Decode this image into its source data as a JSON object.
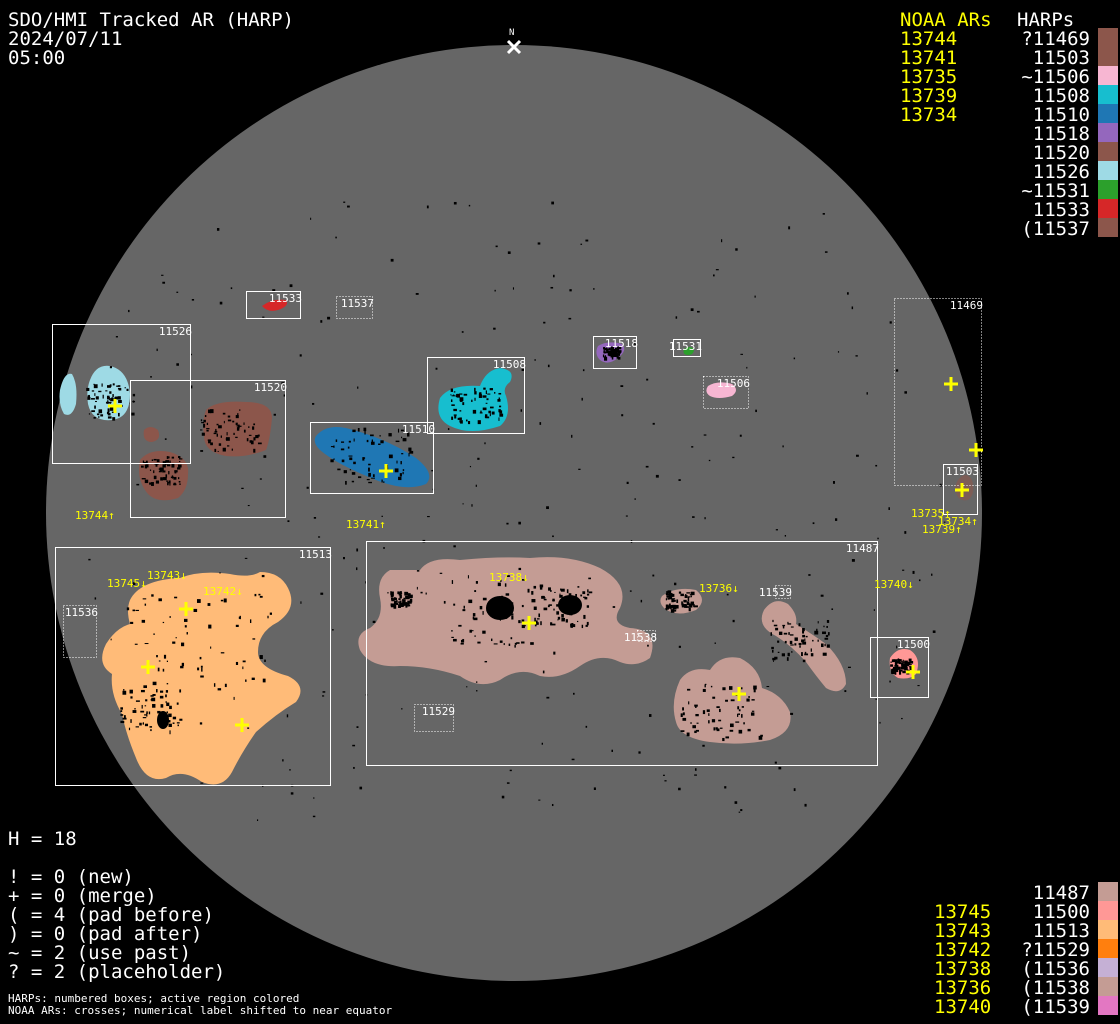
{
  "header": {
    "title": "SDO/HMI Tracked AR (HARP)",
    "date": "2024/07/11",
    "time": "05:00"
  },
  "north_marker": "N",
  "top_legend": {
    "noaa_header": "NOAA ARs",
    "harp_header": "HARPs",
    "noaa": [
      "13744",
      "13741",
      "13735",
      "13739",
      "13734"
    ],
    "harps": [
      {
        "label": "?11469",
        "color": "#8c564b"
      },
      {
        "label": "11503",
        "color": "#8c564b"
      },
      {
        "label": "~11506",
        "color": "#f7b6d2"
      },
      {
        "label": "11508",
        "color": "#17becf"
      },
      {
        "label": "11510",
        "color": "#1f77b4"
      },
      {
        "label": "11518",
        "color": "#9467bd"
      },
      {
        "label": "11520",
        "color": "#8c564b"
      },
      {
        "label": "11526",
        "color": "#9edae5"
      },
      {
        "label": "~11531",
        "color": "#2ca02c"
      },
      {
        "label": "11533",
        "color": "#d62728"
      },
      {
        "label": "(11537",
        "color": "#8c564b"
      }
    ]
  },
  "bottom_legend": {
    "rows": [
      {
        "noaa": "",
        "harp": "11487",
        "color": "#c49c94"
      },
      {
        "noaa": "13745",
        "harp": "11500",
        "color": "#ff9896"
      },
      {
        "noaa": "13743",
        "harp": "11513",
        "color": "#ffbb78"
      },
      {
        "noaa": "13742",
        "harp": "?11529",
        "color": "#ff7f0e"
      },
      {
        "noaa": "13738",
        "harp": "(11536",
        "color": "#c5b0d5"
      },
      {
        "noaa": "13736",
        "harp": "(11538",
        "color": "#c49c94"
      },
      {
        "noaa": "13740",
        "harp": "(11539",
        "color": "#e377c2"
      }
    ]
  },
  "stats": {
    "h": "H = 18",
    "lines": [
      "! = 0 (new)",
      "+ = 0 (merge)",
      "( = 4 (pad before)",
      ") = 0 (pad after)",
      "~ = 2 (use past)",
      "? = 2 (placeholder)"
    ]
  },
  "notes": [
    "HARPs: numbered boxes; active region colored",
    "NOAA ARs: crosses; numerical label shifted to near equator"
  ],
  "disk": {
    "color": "#666666"
  },
  "harp_boxes": [
    {
      "label": "11533",
      "style": "solid"
    },
    {
      "label": "11537",
      "style": "dotted"
    },
    {
      "label": "11526",
      "style": "solid"
    },
    {
      "label": "11520",
      "style": "solid"
    },
    {
      "label": "11510",
      "style": "solid"
    },
    {
      "label": "11508",
      "style": "solid"
    },
    {
      "label": "11518",
      "style": "solid"
    },
    {
      "label": "11531",
      "style": "solid"
    },
    {
      "label": "11506",
      "style": "dotted"
    },
    {
      "label": "11469",
      "style": "dotted"
    },
    {
      "label": "11503",
      "style": "solid"
    },
    {
      "label": "11513",
      "style": "solid"
    },
    {
      "label": "11536",
      "style": "dotted"
    },
    {
      "label": "11487",
      "style": "solid"
    },
    {
      "label": "11539",
      "style": "dotted"
    },
    {
      "label": "11538",
      "style": "dotted"
    },
    {
      "label": "11529",
      "style": "dotted"
    },
    {
      "label": "11500",
      "style": "solid"
    }
  ],
  "noaa_labels": [
    "13744↑",
    "13741↑",
    "13735↑",
    "13734↑",
    "13739↑",
    "13745↓",
    "13743↓",
    "13742↓",
    "13738↓",
    "13736↓",
    "13740↓"
  ]
}
